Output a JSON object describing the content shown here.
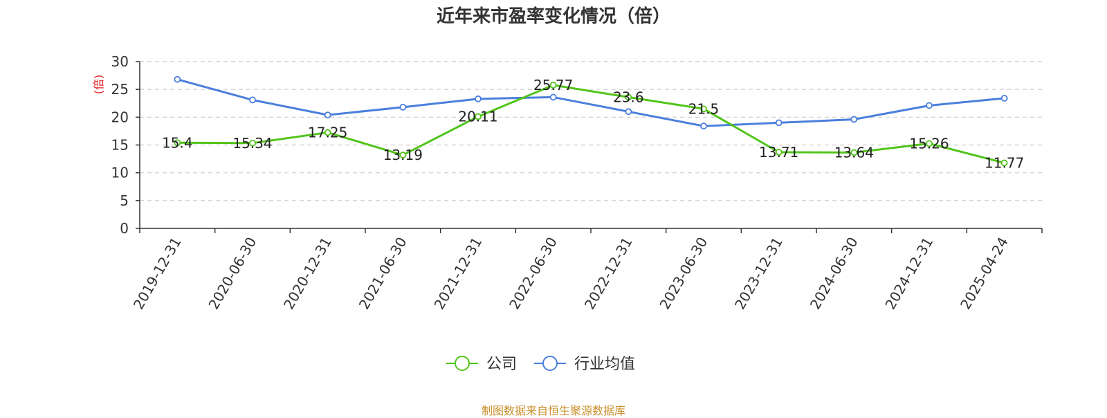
{
  "chart_data": {
    "type": "line",
    "title": "近年来市盈率变化情况（倍）",
    "ylabel": "(倍)",
    "xlabel": "",
    "ylim": [
      0,
      30
    ],
    "yticks": [
      0,
      5,
      10,
      15,
      20,
      25,
      30
    ],
    "grid": true,
    "legend_position": "bottom",
    "categories": [
      "2019-12-31",
      "2020-06-30",
      "2020-12-31",
      "2021-06-30",
      "2021-12-31",
      "2022-06-30",
      "2022-12-31",
      "2023-06-30",
      "2023-12-31",
      "2024-06-30",
      "2024-12-31",
      "2025-04-24"
    ],
    "series": [
      {
        "name": "公司",
        "color": "#52c41a",
        "values": [
          15.4,
          15.34,
          17.25,
          13.19,
          20.11,
          25.77,
          23.6,
          21.5,
          13.71,
          13.64,
          15.26,
          11.77
        ],
        "labels": [
          "15.4",
          "15.34",
          "17.25",
          "13.19",
          "20.11",
          "25.77",
          "23.6",
          "21.5",
          "13.71",
          "13.64",
          "15.26",
          "11.77"
        ]
      },
      {
        "name": "行业均值",
        "color": "#4a7fdc",
        "values": [
          26.8,
          23.1,
          20.4,
          21.8,
          23.3,
          23.6,
          21.0,
          18.4,
          19.0,
          19.6,
          22.1,
          23.4
        ]
      }
    ],
    "source": "制图数据来自恒生聚源数据库"
  },
  "colors": {
    "axis": "#333333",
    "grid": "#cccccc",
    "ylabel": "#e02020",
    "source": "#c9902b"
  }
}
